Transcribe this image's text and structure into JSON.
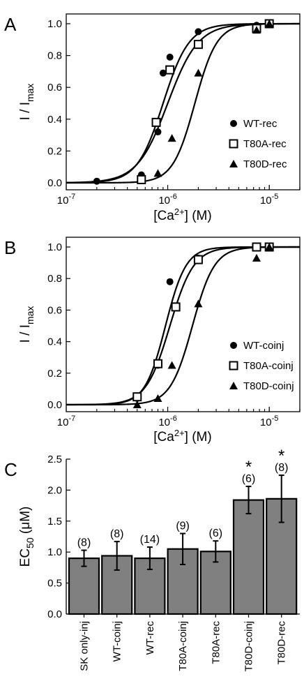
{
  "chart_data": [
    {
      "panel": "A",
      "type": "scatter",
      "xscale": "log",
      "xlim": [
        1e-07,
        2e-05
      ],
      "ylim": [
        0,
        1.0
      ],
      "x_ticks": [
        {
          "value": 1e-07,
          "base": "10",
          "exp": "-7"
        },
        {
          "value": 1e-06,
          "base": "10",
          "exp": "-6"
        },
        {
          "value": 1e-05,
          "base": "10",
          "exp": "-5"
        }
      ],
      "y_ticks": [
        "0.0",
        "0.2",
        "0.4",
        "0.6",
        "0.8",
        "1.0"
      ],
      "xlabel": {
        "main": "[Ca",
        "sup": "2+",
        "rest": "] (M)"
      },
      "ylabel": {
        "main": "I / I",
        "sub": "max"
      },
      "legend_position": "bottom-right",
      "series": [
        {
          "name": "WT-rec",
          "marker": "circle",
          "ec50": 9e-07,
          "hill": 3.4,
          "points": [
            [
              2e-07,
              0.01
            ],
            [
              5.5e-07,
              0.05
            ],
            [
              8e-07,
              0.32
            ],
            [
              9e-07,
              0.69
            ],
            [
              1.05e-06,
              0.79
            ],
            [
              2e-06,
              0.95
            ],
            [
              7.5e-06,
              0.99
            ],
            [
              1e-05,
              1.0
            ]
          ]
        },
        {
          "name": "T80A-rec",
          "marker": "square",
          "ec50": 1e-06,
          "hill": 2.9,
          "points": [
            [
              5.5e-07,
              0.02
            ],
            [
              7.7e-07,
              0.38
            ],
            [
              1.05e-06,
              0.71
            ],
            [
              2e-06,
              0.87
            ],
            [
              7.5e-06,
              0.97
            ],
            [
              1e-05,
              1.0
            ]
          ]
        },
        {
          "name": "T80D-rec",
          "marker": "triangle",
          "ec50": 1.85e-06,
          "hill": 4.0,
          "points": [
            [
              8e-07,
              0.06
            ],
            [
              1.1e-06,
              0.28
            ],
            [
              2e-06,
              0.69
            ],
            [
              7.5e-06,
              0.96
            ],
            [
              1e-05,
              1.0
            ]
          ]
        }
      ]
    },
    {
      "panel": "B",
      "type": "scatter",
      "xscale": "log",
      "xlim": [
        1e-07,
        2e-05
      ],
      "ylim": [
        0,
        1.0
      ],
      "x_ticks": [
        {
          "value": 1e-07,
          "base": "10",
          "exp": "-7"
        },
        {
          "value": 1e-06,
          "base": "10",
          "exp": "-6"
        },
        {
          "value": 1e-05,
          "base": "10",
          "exp": "-5"
        }
      ],
      "y_ticks": [
        "0.0",
        "0.2",
        "0.4",
        "0.6",
        "0.8",
        "1.0"
      ],
      "xlabel": {
        "main": "[Ca",
        "sup": "2+",
        "rest": "] (M)"
      },
      "ylabel": {
        "main": "I / I",
        "sub": "max"
      },
      "legend_position": "bottom-right",
      "series": [
        {
          "name": "WT-coinj",
          "marker": "circle",
          "ec50": 9.5e-07,
          "hill": 4.3,
          "points": [
            [
              5e-07,
              0.04
            ],
            [
              8e-07,
              0.25
            ],
            [
              1.05e-06,
              0.78
            ],
            [
              2e-06,
              0.93
            ],
            [
              7.5e-06,
              1.0
            ],
            [
              1e-05,
              1.0
            ]
          ]
        },
        {
          "name": "T80A-coinj",
          "marker": "square",
          "ec50": 1.05e-06,
          "hill": 3.7,
          "points": [
            [
              5e-07,
              0.05
            ],
            [
              8e-07,
              0.26
            ],
            [
              1.2e-06,
              0.62
            ],
            [
              2e-06,
              0.92
            ],
            [
              7.5e-06,
              1.0
            ],
            [
              1e-05,
              1.0
            ]
          ]
        },
        {
          "name": "T80D-coinj",
          "marker": "triangle",
          "ec50": 1.75e-06,
          "hill": 4.0,
          "points": [
            [
              5e-07,
              0.0
            ],
            [
              8e-07,
              0.04
            ],
            [
              1.1e-06,
              0.25
            ],
            [
              2e-06,
              0.64
            ],
            [
              7.5e-06,
              0.93
            ],
            [
              1e-05,
              1.0
            ]
          ]
        }
      ]
    },
    {
      "panel": "C",
      "type": "bar",
      "ylim": [
        0,
        2.5
      ],
      "y_ticks": [
        "0.0",
        "0.5",
        "1.0",
        "1.5",
        "2.0",
        "2.5"
      ],
      "ylabel": {
        "main": "EC",
        "sub": "50",
        "rest": " (μM)"
      },
      "bar_color": "#808080",
      "categories": [
        "SK only-inj",
        "WT-coinj",
        "WT-rec",
        "T80A-coinj",
        "T80A-rec",
        "T80D-coinj",
        "T80D-rec"
      ],
      "values": [
        0.9,
        0.94,
        0.9,
        1.05,
        1.01,
        1.84,
        1.86
      ],
      "errors": [
        0.13,
        0.23,
        0.18,
        0.25,
        0.17,
        0.22,
        0.38
      ],
      "n_labels": [
        "(8)",
        "(8)",
        "(14)",
        "(9)",
        "(6)",
        "(6)",
        "(8)"
      ],
      "significance": [
        "",
        "",
        "",
        "",
        "",
        "*",
        "*"
      ]
    }
  ]
}
